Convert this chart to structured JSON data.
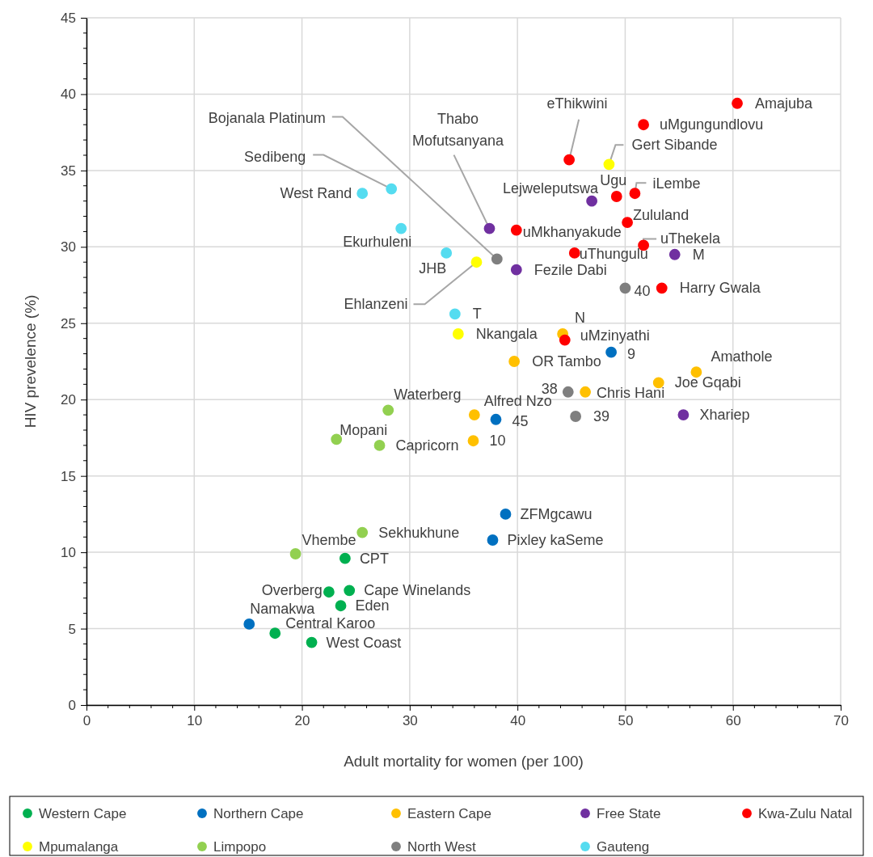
{
  "chart_data": {
    "type": "scatter",
    "xlabel": "Adult mortality for women (per 100)",
    "ylabel": "HIV prevelence (%)",
    "xlim": [
      0,
      70
    ],
    "xticks": [
      0,
      10,
      20,
      30,
      40,
      50,
      60,
      70
    ],
    "ylim": [
      0,
      45
    ],
    "yticks": [
      0,
      5,
      10,
      15,
      20,
      25,
      30,
      35,
      40,
      45
    ],
    "grid": true,
    "marker": "circle",
    "legend": "bottom",
    "series": [
      {
        "name": "Western Cape",
        "color": "#00b050",
        "x": [
          24.0,
          24.4,
          22.5,
          23.6,
          17.5,
          20.9
        ],
        "values": [
          9.6,
          7.5,
          7.4,
          6.5,
          4.7,
          4.1
        ]
      },
      {
        "name": "Northern Cape",
        "color": "#0070c0",
        "x": [
          15.1,
          38.9,
          37.7,
          48.7,
          38.0
        ],
        "values": [
          5.3,
          12.5,
          10.8,
          23.1,
          18.7
        ]
      },
      {
        "name": "Eastern Cape",
        "color": "#ffc000",
        "x": [
          39.7,
          56.6,
          53.1,
          46.3,
          36.0,
          35.9,
          44.2
        ],
        "values": [
          22.5,
          21.8,
          21.1,
          20.5,
          19.0,
          17.3,
          24.3
        ]
      },
      {
        "name": "Free State",
        "color": "#7030a0",
        "x": [
          37.4,
          46.9,
          39.9,
          54.6,
          55.4
        ],
        "values": [
          31.2,
          33.0,
          28.5,
          29.5,
          19.0
        ]
      },
      {
        "name": "Kwa-Zulu Natal",
        "color": "#ff0000",
        "x": [
          60.4,
          51.7,
          44.8,
          49.2,
          50.9,
          50.2,
          39.9,
          51.7,
          45.3,
          53.4,
          44.4
        ],
        "values": [
          39.4,
          38.0,
          35.7,
          33.3,
          33.5,
          31.6,
          31.1,
          30.1,
          29.6,
          27.3,
          23.9
        ]
      },
      {
        "name": "Mpumalanga",
        "color": "#ffff00",
        "x": [
          48.5,
          36.2,
          34.5
        ],
        "values": [
          35.4,
          29.0,
          24.3
        ]
      },
      {
        "name": "Limpopo",
        "color": "#92d050",
        "x": [
          28.0,
          23.2,
          27.2,
          25.6,
          19.4
        ],
        "values": [
          19.3,
          17.4,
          17.0,
          11.3,
          9.9
        ]
      },
      {
        "name": "North West",
        "color": "#7f7f7f",
        "x": [
          38.1,
          50.0,
          44.7,
          45.4
        ],
        "values": [
          29.2,
          27.3,
          20.5,
          18.9
        ]
      },
      {
        "name": "Gauteng",
        "color": "#55dcf0",
        "x": [
          25.6,
          28.3,
          29.2,
          33.4,
          34.2
        ],
        "values": [
          33.5,
          33.8,
          31.2,
          29.6,
          25.6
        ]
      }
    ],
    "annotations": [
      {
        "text": "CPT",
        "x": 24.0,
        "y": 9.6
      },
      {
        "text": "Cape Winelands",
        "x": 24.4,
        "y": 7.5
      },
      {
        "text": "Overberg",
        "x": 22.5,
        "y": 7.4
      },
      {
        "text": "Eden",
        "x": 23.6,
        "y": 6.5
      },
      {
        "text": "Central Karoo",
        "x": 17.5,
        "y": 4.7
      },
      {
        "text": "West Coast",
        "x": 20.9,
        "y": 4.1
      },
      {
        "text": "Namakwa",
        "x": 15.1,
        "y": 5.3
      },
      {
        "text": "ZFMgcawu",
        "x": 38.9,
        "y": 12.5
      },
      {
        "text": "Pixley kaSeme",
        "x": 37.7,
        "y": 10.8
      },
      {
        "text": "9",
        "x": 48.7,
        "y": 23.1
      },
      {
        "text": "45",
        "x": 38.0,
        "y": 18.7
      },
      {
        "text": "OR Tambo",
        "x": 39.7,
        "y": 22.5
      },
      {
        "text": "Amathole",
        "x": 56.6,
        "y": 21.8
      },
      {
        "text": "Joe Gqabi",
        "x": 53.1,
        "y": 21.1
      },
      {
        "text": "Chris Hani",
        "x": 46.3,
        "y": 20.5
      },
      {
        "text": "Alfred Nzo",
        "x": 36.0,
        "y": 19.0
      },
      {
        "text": "10",
        "x": 35.9,
        "y": 17.3
      },
      {
        "text": "N",
        "x": 44.2,
        "y": 24.3
      },
      {
        "text": "Thabo Mofutsanyana",
        "x": 37.4,
        "y": 31.2
      },
      {
        "text": "Lejweleputswa",
        "x": 46.9,
        "y": 33.0
      },
      {
        "text": "Fezile Dabi",
        "x": 39.9,
        "y": 28.5
      },
      {
        "text": "M",
        "x": 54.6,
        "y": 29.5
      },
      {
        "text": "Xhariep",
        "x": 55.4,
        "y": 19.0
      },
      {
        "text": "Amajuba",
        "x": 60.4,
        "y": 39.4
      },
      {
        "text": "uMgungundlovu",
        "x": 51.7,
        "y": 38.0
      },
      {
        "text": "eThikwini",
        "x": 44.8,
        "y": 35.7
      },
      {
        "text": "Ugu",
        "x": 49.2,
        "y": 33.3
      },
      {
        "text": "iLembe",
        "x": 50.9,
        "y": 33.5
      },
      {
        "text": "Zululand",
        "x": 50.2,
        "y": 31.6
      },
      {
        "text": "uMkhanyakude",
        "x": 39.9,
        "y": 31.1
      },
      {
        "text": "uThekela",
        "x": 51.7,
        "y": 30.1
      },
      {
        "text": "uThungulu",
        "x": 45.3,
        "y": 29.6
      },
      {
        "text": "Harry Gwala",
        "x": 53.4,
        "y": 27.3
      },
      {
        "text": "uMzinyathi",
        "x": 44.4,
        "y": 23.9
      },
      {
        "text": "Gert Sibande",
        "x": 48.5,
        "y": 35.4
      },
      {
        "text": "Ehlanzeni",
        "x": 36.2,
        "y": 29.0
      },
      {
        "text": "Nkangala",
        "x": 34.5,
        "y": 24.3
      },
      {
        "text": "Waterberg",
        "x": 28.0,
        "y": 19.3
      },
      {
        "text": "Mopani",
        "x": 23.2,
        "y": 17.4
      },
      {
        "text": "Capricorn",
        "x": 27.2,
        "y": 17.0
      },
      {
        "text": "Sekhukhune",
        "x": 25.6,
        "y": 11.3
      },
      {
        "text": "Vhembe",
        "x": 19.4,
        "y": 9.9
      },
      {
        "text": "Bojanala Platinum",
        "x": 38.1,
        "y": 29.2
      },
      {
        "text": "40",
        "x": 50.0,
        "y": 27.3
      },
      {
        "text": "38",
        "x": 44.7,
        "y": 20.5
      },
      {
        "text": "39",
        "x": 45.4,
        "y": 18.9
      },
      {
        "text": "West Rand",
        "x": 25.6,
        "y": 33.5
      },
      {
        "text": "Sedibeng",
        "x": 28.3,
        "y": 33.8
      },
      {
        "text": "Ekurhuleni",
        "x": 29.2,
        "y": 31.2
      },
      {
        "text": "JHB",
        "x": 33.4,
        "y": 29.6
      },
      {
        "text": "T",
        "x": 34.2,
        "y": 25.6
      }
    ]
  }
}
